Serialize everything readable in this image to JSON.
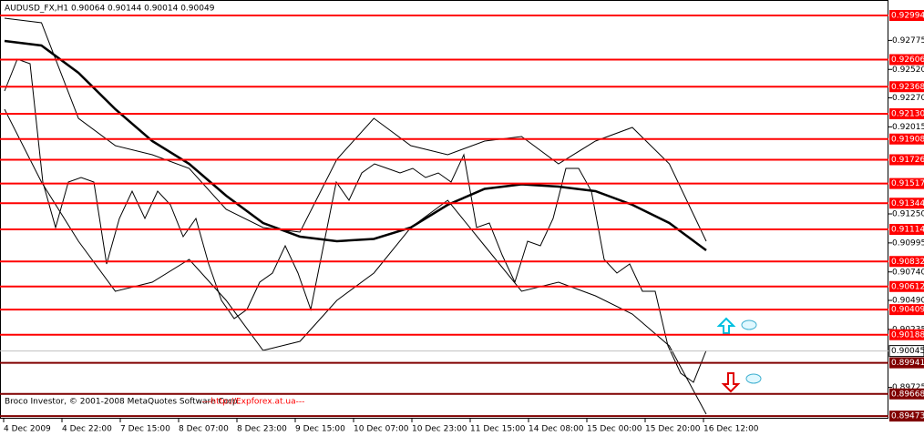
{
  "chart_data": {
    "type": "line",
    "title": "AUDUSD_FX,H1  0.90064 0.90144 0.90014 0.90049",
    "copyright": "Broco Investor, © 2001-2008 MetaQuotes Software Corp.",
    "watermark": "---http://Expforex.at.ua---",
    "x_labels": [
      "4 Dec 2009",
      "4 Dec 22:00",
      "7 Dec 15:00",
      "8 Dec 07:00",
      "8 Dec 23:00",
      "9 Dec 15:00",
      "10 Dec 07:00",
      "10 Dec 23:00",
      "11 Dec 15:00",
      "14 Dec 08:00",
      "15 Dec 00:00",
      "15 Dec 20:00",
      "16 Dec 12:00"
    ],
    "ylim": [
      0.8945,
      0.9313
    ],
    "yticks": [
      0.92775,
      {
        "value": 0.9252,
        "label": "0.92520"
      },
      {
        "value": 0.9227,
        "label": "0.92270"
      },
      0.92015,
      {
        "value": 0.9125,
        "label": "0.91250"
      },
      0.90995,
      {
        "value": 0.9074,
        "label": "0.90740"
      },
      {
        "value": 0.9049,
        "label": "0.90490"
      },
      0.90235,
      0.89725
    ],
    "levels": [
      0.92994,
      0.92606,
      0.92368,
      {
        "value": 0.9213,
        "label": "0.92130"
      },
      0.91908,
      0.91726,
      0.91517,
      0.91344,
      0.91114,
      0.90832,
      0.90612,
      0.90409,
      0.90188,
      0.89941,
      0.89668,
      0.89473
    ],
    "level_colors": [
      "#ff0000",
      "#ff0000",
      "#ff0000",
      "#ff0000",
      "#ff0000",
      "#ff0000",
      "#ff0000",
      "#ff0000",
      "#ff0000",
      "#ff0000",
      "#ff0000",
      "#ff0000",
      "#ff0000",
      "#800000",
      "#800000",
      "#800000"
    ],
    "current": 0.90045,
    "series": [
      {
        "color": "#000000",
        "values": [
          0.9233,
          0.9261,
          0.9257,
          0.9153,
          0.9113,
          0.9153,
          0.9157,
          0.9153,
          0.9081,
          0.9121,
          0.9145,
          0.9121,
          0.9145,
          0.9133,
          0.9105,
          0.9121,
          0.9081,
          0.9049,
          0.9033,
          0.9041,
          0.9065,
          0.9073,
          0.9097,
          0.9073,
          0.9041,
          0.9097,
          0.9153,
          0.9137,
          0.9161,
          0.9169,
          0.9165,
          0.9161,
          0.9165,
          0.9157,
          0.9161,
          0.9153,
          0.9177,
          0.9113,
          0.9117,
          0.9089,
          0.9065,
          0.9101,
          0.9097,
          0.9121,
          0.9165,
          0.9165,
          0.9145,
          0.9085,
          0.9073,
          0.9081,
          0.9057,
          0.9057,
          0.9009,
          0.8985,
          0.8977,
          0.9005
        ]
      },
      {
        "color": "#000000",
        "values": [
          0.9277,
          0.9273,
          0.9249,
          0.9217,
          0.9189,
          0.9169,
          0.9141,
          0.9117,
          0.9105,
          0.9101,
          0.9103,
          0.9113,
          0.9133,
          0.9147,
          0.9151,
          0.9149,
          0.9145,
          0.9133,
          0.9117,
          0.9093
        ]
      },
      {
        "color": "#000000",
        "values": [
          0.9297,
          0.9293,
          0.9209,
          0.9185,
          0.9177,
          0.9165,
          0.9129,
          0.9113,
          0.9109,
          0.9173,
          0.9209,
          0.9185,
          0.9177,
          0.9189,
          0.9193,
          0.9169,
          0.9189,
          0.9201,
          0.9169,
          0.9101
        ]
      },
      {
        "color": "#000000",
        "values": [
          0.9217,
          0.9153,
          0.9101,
          0.9057,
          0.9065,
          0.9085,
          0.9049,
          0.9005,
          0.9013,
          0.9049,
          0.9073,
          0.9113,
          0.9137,
          0.9097,
          0.9057,
          0.9065,
          0.9053,
          0.9037,
          0.9009,
          0.8949
        ]
      }
    ]
  }
}
